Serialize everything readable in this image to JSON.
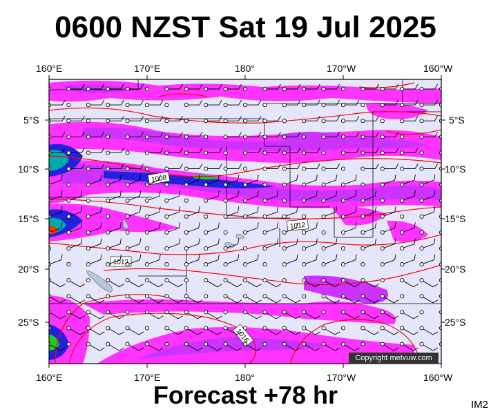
{
  "title": "0600 NZST Sat 19 Jul 2025",
  "footer": "Forecast +78 hr",
  "image_code": "IM2",
  "copyright": "Copyright metvuw.com",
  "lon_labels": [
    "160°E",
    "170°E",
    "180°",
    "170°W",
    "160°W"
  ],
  "lat_labels": [
    "5°S",
    "10°S",
    "15°S",
    "20°S",
    "25°S"
  ],
  "isobar_labels": [
    "1008",
    "1012",
    "1012",
    "1016"
  ],
  "colors": {
    "ocean": "#e6e6fa",
    "precip_light": "#ff33ff",
    "precip_medium": "#cc33ff",
    "precip_heavy": "#2222dd",
    "precip_very_heavy": "#00aaaa",
    "precip_extreme": "#22cc22",
    "isobar": "#ff0000",
    "wind_barb": "#000000",
    "land": "#b4c8dc"
  }
}
